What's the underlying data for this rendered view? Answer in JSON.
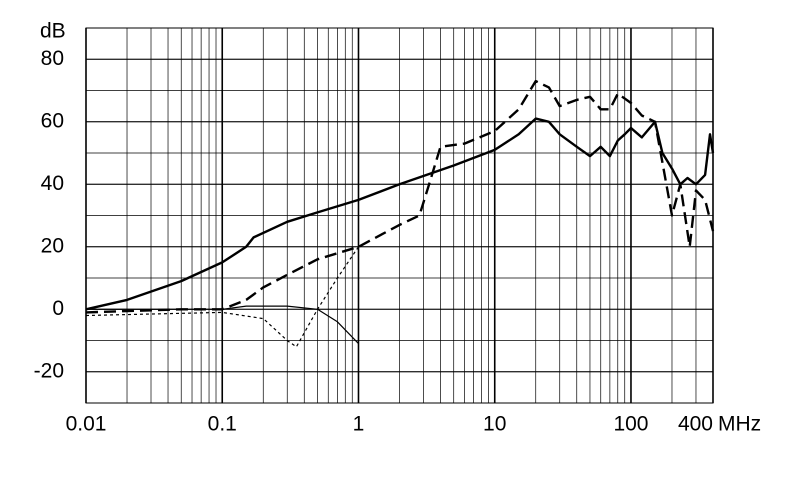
{
  "chart_data": {
    "type": "line",
    "xscale": "log",
    "grid": true,
    "x_label": "MHz",
    "y_label": "dB",
    "xlim": [
      0.01,
      400
    ],
    "xticks": [
      0.01,
      0.1,
      1,
      10,
      100,
      400
    ],
    "ylim": [
      -30,
      90
    ],
    "yticks": [
      -20,
      0,
      20,
      40,
      60,
      80
    ],
    "series": [
      {
        "color": "#000000",
        "style": "solid",
        "width": 2.4,
        "x": [
          0.01,
          0.02,
          0.05,
          0.1,
          0.15,
          0.17,
          0.3,
          0.5,
          1,
          2,
          5,
          10,
          15,
          20,
          25,
          30,
          40,
          50,
          60,
          70,
          80,
          90,
          100,
          120,
          150,
          170,
          200,
          230,
          260,
          300,
          350,
          380,
          400
        ],
        "values": [
          0,
          3,
          9,
          15,
          20,
          23,
          28,
          31,
          35,
          40,
          46,
          51,
          56,
          61,
          60,
          56,
          52,
          49,
          52,
          49,
          54,
          56,
          58,
          55,
          60,
          50,
          45,
          40,
          42,
          40,
          43,
          56,
          50
        ]
      },
      {
        "color": "#000000",
        "style": "dashed",
        "width": 2.4,
        "x": [
          0.01,
          0.05,
          0.1,
          0.15,
          0.2,
          0.3,
          0.5,
          1,
          2,
          2.8,
          3.3,
          4,
          6,
          10,
          15,
          20,
          25,
          30,
          40,
          50,
          60,
          70,
          80,
          100,
          120,
          150,
          170,
          200,
          230,
          270,
          300,
          350,
          400
        ],
        "values": [
          -1,
          0,
          0,
          3,
          7,
          11,
          16,
          20,
          27,
          30,
          40,
          52,
          53,
          57,
          64,
          73,
          71,
          65,
          67,
          68,
          64,
          64,
          69,
          66,
          62,
          60,
          47,
          30,
          40,
          20,
          38,
          35,
          25
        ]
      },
      {
        "color": "#000000",
        "style": "solid",
        "width": 1.2,
        "x": [
          0.01,
          0.1,
          0.15,
          0.3,
          0.5,
          0.7,
          1
        ],
        "values": [
          0,
          0,
          1,
          1,
          0,
          -4,
          -11
        ]
      },
      {
        "color": "#000000",
        "style": "dotted",
        "width": 1.2,
        "x": [
          0.01,
          0.1,
          0.2,
          0.3,
          0.35,
          0.5,
          0.7,
          1
        ],
        "values": [
          -2,
          -1,
          -3,
          -10,
          -12,
          0,
          10,
          20
        ]
      }
    ]
  }
}
